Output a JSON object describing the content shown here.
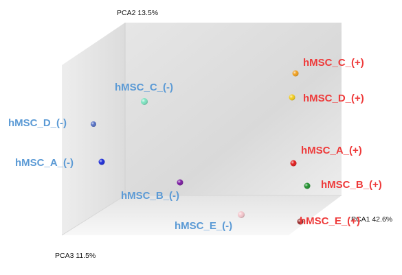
{
  "chart_data": {
    "type": "scatter",
    "title": "",
    "axes": {
      "x": "PCA1 42.6%",
      "y": "PCA2 13.5%",
      "z": "PCA3 11.5%"
    },
    "legend": "none",
    "grid": false,
    "series": [
      {
        "name": "",
        "label": "hMSC_C_(+)",
        "group": "+",
        "color": "#f0a020",
        "label_color": "#ee3a3a"
      },
      {
        "name": "",
        "label": "hMSC_D_(+)",
        "group": "+",
        "color": "#f2cc1c",
        "label_color": "#ee3a3a"
      },
      {
        "name": "",
        "label": "hMSC_A_(+)",
        "group": "+",
        "color": "#e01c1c",
        "label_color": "#ee3a3a"
      },
      {
        "name": "",
        "label": "hMSC_B_(+)",
        "group": "+",
        "color": "#1f8f2c",
        "label_color": "#ee3a3a"
      },
      {
        "name": "",
        "label": "hMSC_E_(+)",
        "group": "+",
        "color": "#9a2c2c",
        "label_color": "#ee3a3a"
      },
      {
        "name": "",
        "label": "hMSC_C_(-)",
        "group": "-",
        "color": "#7de3c0",
        "label_color": "#5b9ad5"
      },
      {
        "name": "",
        "label": "hMSC_D_(-)",
        "group": "-",
        "color": "#5570c4",
        "label_color": "#5b9ad5"
      },
      {
        "name": "",
        "label": "hMSC_A_(-)",
        "group": "-",
        "color": "#1a2ad8",
        "label_color": "#5b9ad5"
      },
      {
        "name": "",
        "label": "hMSC_B_(-)",
        "group": "-",
        "color": "#7a1aa0",
        "label_color": "#5b9ad5"
      },
      {
        "name": "",
        "label": "hMSC_E_(-)",
        "group": "-",
        "color": "#f4c6cc",
        "label_color": "#5b9ad5"
      }
    ]
  }
}
